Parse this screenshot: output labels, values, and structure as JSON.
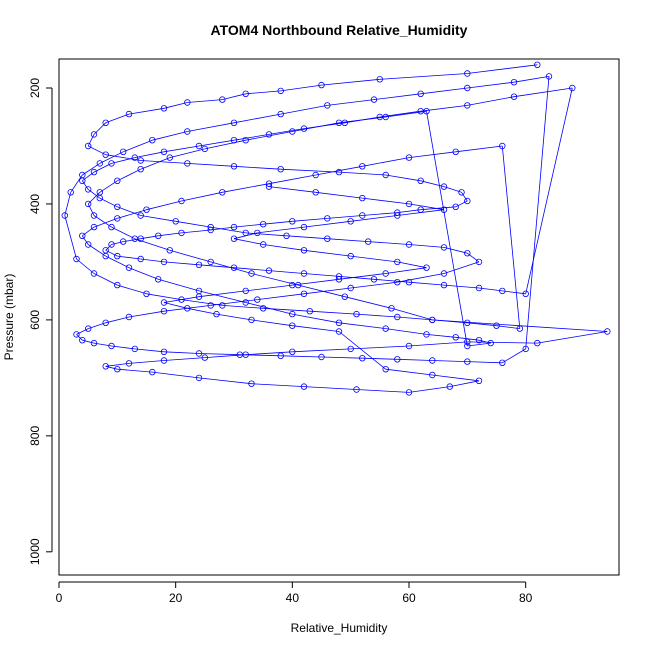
{
  "chart_data": {
    "type": "line",
    "title": "ATOM4 Northbound Relative_Humidity",
    "xlabel": "Relative_Humidity",
    "ylabel": "Pressure (mbar)",
    "xlim": [
      0,
      96
    ],
    "ylim": [
      1040,
      150
    ],
    "y_inverted": true,
    "xticks": [
      0,
      20,
      40,
      60,
      80
    ],
    "yticks": [
      200,
      400,
      600,
      800,
      1000
    ],
    "grid": false,
    "legend": "none",
    "marker": "open-circle",
    "colors": {
      "series": "#0000ff",
      "axis": "#000000",
      "background": "#ffffff"
    },
    "series": [
      {
        "x": [
          82,
          70,
          55,
          45,
          38,
          32,
          28,
          22,
          18,
          12,
          8,
          6,
          5,
          8,
          14,
          22,
          30,
          38,
          48,
          56,
          62,
          66,
          69,
          70,
          68,
          62,
          58,
          52,
          46,
          40,
          35,
          30,
          26,
          21,
          17,
          14,
          11,
          9,
          8,
          10,
          14,
          18,
          24,
          30,
          36,
          42,
          48,
          54,
          60,
          66,
          72,
          76,
          80,
          88,
          78,
          70,
          62,
          55,
          49,
          42,
          36,
          30,
          24,
          18,
          13,
          9,
          6,
          4,
          5,
          7,
          10,
          14,
          20,
          26,
          32,
          39,
          46,
          53,
          60,
          66,
          70,
          72,
          66,
          58,
          50,
          42,
          34,
          26,
          18,
          12,
          8,
          5,
          3,
          4,
          6,
          9,
          13,
          18,
          24,
          31,
          38,
          45,
          52,
          58,
          64,
          70,
          76,
          80,
          84,
          78,
          70,
          62,
          54,
          46,
          38,
          30,
          22,
          16,
          11,
          7,
          4,
          2,
          1,
          3,
          6,
          10,
          15,
          21,
          28,
          35,
          43,
          51,
          58,
          64,
          70,
          75,
          79,
          76,
          68,
          60,
          52,
          44,
          36,
          28,
          21,
          15,
          10,
          6,
          4,
          5,
          8,
          12,
          17,
          24,
          32,
          40,
          48,
          56,
          63,
          68,
          72,
          74,
          70,
          63,
          56,
          48,
          40,
          32,
          25,
          19,
          14,
          10,
          7,
          5,
          6,
          9,
          13,
          19,
          26,
          33,
          41,
          49,
          57,
          64,
          94,
          82,
          70,
          60,
          50,
          40,
          32,
          25,
          18,
          12,
          8,
          10,
          16,
          24,
          33,
          42,
          51,
          60,
          67,
          72,
          64,
          56,
          48,
          40,
          33,
          27,
          22,
          18,
          24,
          32,
          40,
          48,
          56,
          63,
          58,
          50,
          42,
          35,
          30,
          34,
          42,
          50,
          58,
          66,
          60,
          52,
          44,
          36
        ],
        "y": [
          160,
          175,
          185,
          195,
          205,
          210,
          220,
          225,
          235,
          245,
          260,
          280,
          300,
          315,
          325,
          330,
          335,
          340,
          345,
          350,
          360,
          370,
          380,
          395,
          405,
          410,
          415,
          420,
          425,
          430,
          435,
          440,
          445,
          450,
          455,
          460,
          465,
          470,
          480,
          490,
          495,
          500,
          505,
          510,
          515,
          520,
          525,
          530,
          535,
          540,
          545,
          550,
          555,
          200,
          215,
          230,
          240,
          250,
          260,
          270,
          280,
          290,
          300,
          310,
          320,
          330,
          345,
          360,
          375,
          390,
          405,
          420,
          430,
          440,
          450,
          455,
          460,
          465,
          470,
          475,
          485,
          500,
          520,
          535,
          545,
          555,
          565,
          575,
          585,
          595,
          605,
          615,
          625,
          635,
          640,
          645,
          650,
          655,
          658,
          660,
          662,
          664,
          666,
          668,
          670,
          672,
          674,
          650,
          180,
          190,
          200,
          210,
          220,
          230,
          245,
          260,
          275,
          290,
          310,
          330,
          350,
          380,
          420,
          495,
          520,
          540,
          555,
          565,
          575,
          580,
          585,
          590,
          595,
          600,
          605,
          610,
          615,
          300,
          310,
          320,
          335,
          350,
          365,
          380,
          395,
          410,
          425,
          440,
          455,
          470,
          490,
          510,
          530,
          550,
          570,
          590,
          605,
          615,
          625,
          630,
          635,
          640,
          645,
          240,
          250,
          260,
          275,
          290,
          305,
          320,
          340,
          360,
          380,
          400,
          420,
          440,
          460,
          480,
          500,
          520,
          540,
          560,
          580,
          600,
          620,
          640,
          638,
          645,
          650,
          655,
          660,
          665,
          670,
          675,
          680,
          685,
          690,
          700,
          710,
          715,
          720,
          725,
          715,
          705,
          695,
          685,
          620,
          610,
          600,
          590,
          580,
          570,
          560,
          550,
          540,
          530,
          520,
          510,
          500,
          490,
          480,
          470,
          460,
          450,
          440,
          430,
          420,
          410,
          400,
          390,
          380,
          370
        ]
      }
    ]
  }
}
